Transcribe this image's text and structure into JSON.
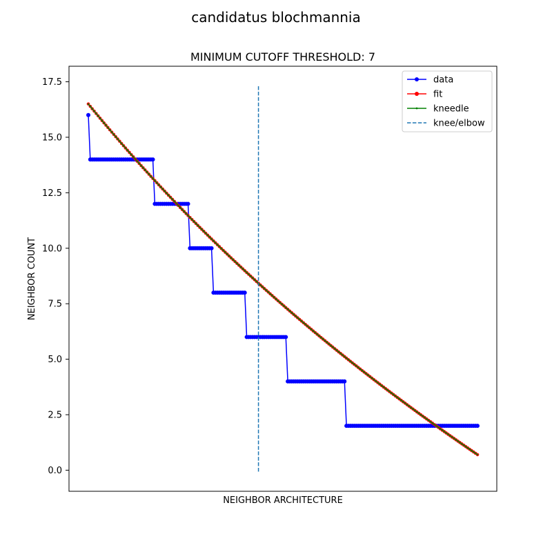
{
  "figure": {
    "suptitle": "candidatus blochmannia"
  },
  "chart_data": {
    "type": "line",
    "title": "MINIMUM CUTOFF THRESHOLD: 7",
    "xlabel": "NEIGHBOR ARCHITECTURE",
    "ylabel": "NEIGHBOR COUNT",
    "x_ticks_visible": false,
    "ylim": [
      -0.95,
      18.2
    ],
    "yticks": [
      "0.0",
      "2.5",
      "5.0",
      "7.5",
      "10.0",
      "12.5",
      "15.0",
      "17.5"
    ],
    "grid": false,
    "legend_position": "upper right",
    "x_count": 200,
    "series": [
      {
        "name": "data",
        "color": "#0000ff",
        "marker": "circle",
        "steps": [
          {
            "from": 0,
            "to": 0,
            "value": 16
          },
          {
            "from": 1,
            "to": 33,
            "value": 14
          },
          {
            "from": 34,
            "to": 51,
            "value": 12
          },
          {
            "from": 52,
            "to": 63,
            "value": 10
          },
          {
            "from": 64,
            "to": 80,
            "value": 8
          },
          {
            "from": 81,
            "to": 101,
            "value": 6
          },
          {
            "from": 102,
            "to": 131,
            "value": 4
          },
          {
            "from": 132,
            "to": 199,
            "value": 2
          }
        ]
      },
      {
        "name": "fit",
        "color": "#ff0000",
        "marker": "circle",
        "model": {
          "type": "exponential",
          "start": 16.5,
          "end": 0.7,
          "curvature": 0.55
        }
      },
      {
        "name": "kneedle",
        "color": "#008000",
        "marker": "small-dot",
        "model": {
          "type": "exponential",
          "start": 16.5,
          "end": 0.7,
          "curvature": 0.55
        }
      },
      {
        "name": "knee/elbow",
        "color": "#1f77b4",
        "style": "dashed",
        "x": 87,
        "y_range": [
          -0.1,
          17.3
        ]
      }
    ]
  }
}
